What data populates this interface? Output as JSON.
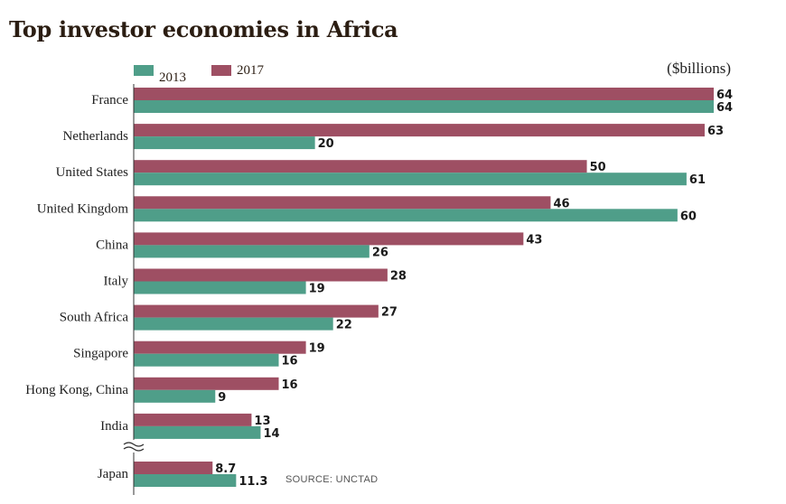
{
  "colors": {
    "s2013": "#4f9e89",
    "s2017": "#9e4f63",
    "text": "#2b1d12",
    "axis": "#333333"
  },
  "chart_data": {
    "type": "bar",
    "orientation": "horizontal",
    "title": "Top investor economies in Africa",
    "units": "($billions)",
    "source": "SOURCE: UNCTAD",
    "legend_position": "top-left",
    "axis_break_before_last_category": true,
    "xlim": [
      0,
      64
    ],
    "categories": [
      "France",
      "Netherlands",
      "United States",
      "United Kingdom",
      "China",
      "Italy",
      "South Africa",
      "Singapore",
      "Hong Kong, China",
      "India",
      "Japan"
    ],
    "series": [
      {
        "name": "2017",
        "color": "#9e4f63",
        "values": [
          64,
          63,
          50,
          46,
          43,
          28,
          27,
          19,
          16,
          13,
          8.7
        ],
        "labels": [
          "64",
          "63",
          "50",
          "46",
          "43",
          "28",
          "27",
          "19",
          "16",
          "13",
          "8.7"
        ]
      },
      {
        "name": "2013",
        "color": "#4f9e89",
        "values": [
          64,
          20,
          61,
          60,
          26,
          19,
          22,
          16,
          9,
          14,
          11.3
        ],
        "labels": [
          "64",
          "20",
          "61",
          "60",
          "26",
          "19",
          "22",
          "16",
          "9",
          "14",
          "11.3"
        ]
      }
    ]
  }
}
